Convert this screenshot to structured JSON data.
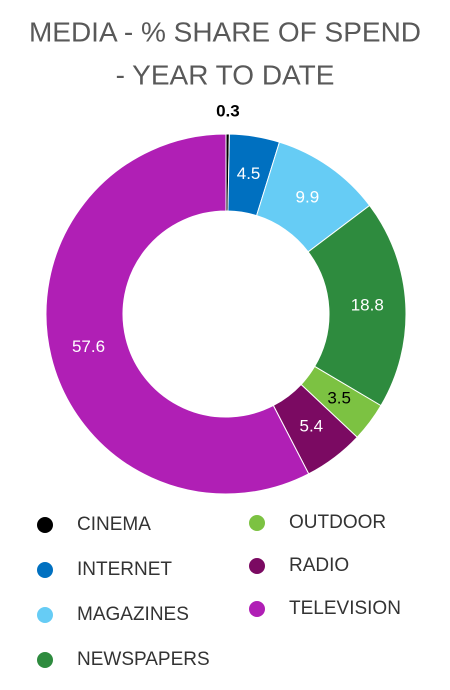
{
  "chart_data": {
    "type": "donut",
    "title": [
      "MEDIA - % SHARE OF SPEND",
      "- YEAR TO DATE"
    ],
    "categories": [
      "CINEMA",
      "INTERNET",
      "MAGAZINES",
      "NEWSPAPERS",
      "OUTDOOR",
      "RADIO",
      "TELEVISION"
    ],
    "values": [
      0.3,
      4.5,
      9.9,
      18.8,
      3.5,
      5.4,
      57.6
    ],
    "colors": [
      "#000000",
      "#0070c0",
      "#66ccf5",
      "#2e8b3e",
      "#7cc242",
      "#7b0a62",
      "#b01fb5"
    ],
    "label_colors": [
      "#000000",
      "#ffffff",
      "#ffffff",
      "#ffffff",
      "#000000",
      "#ffffff",
      "#ffffff"
    ]
  }
}
